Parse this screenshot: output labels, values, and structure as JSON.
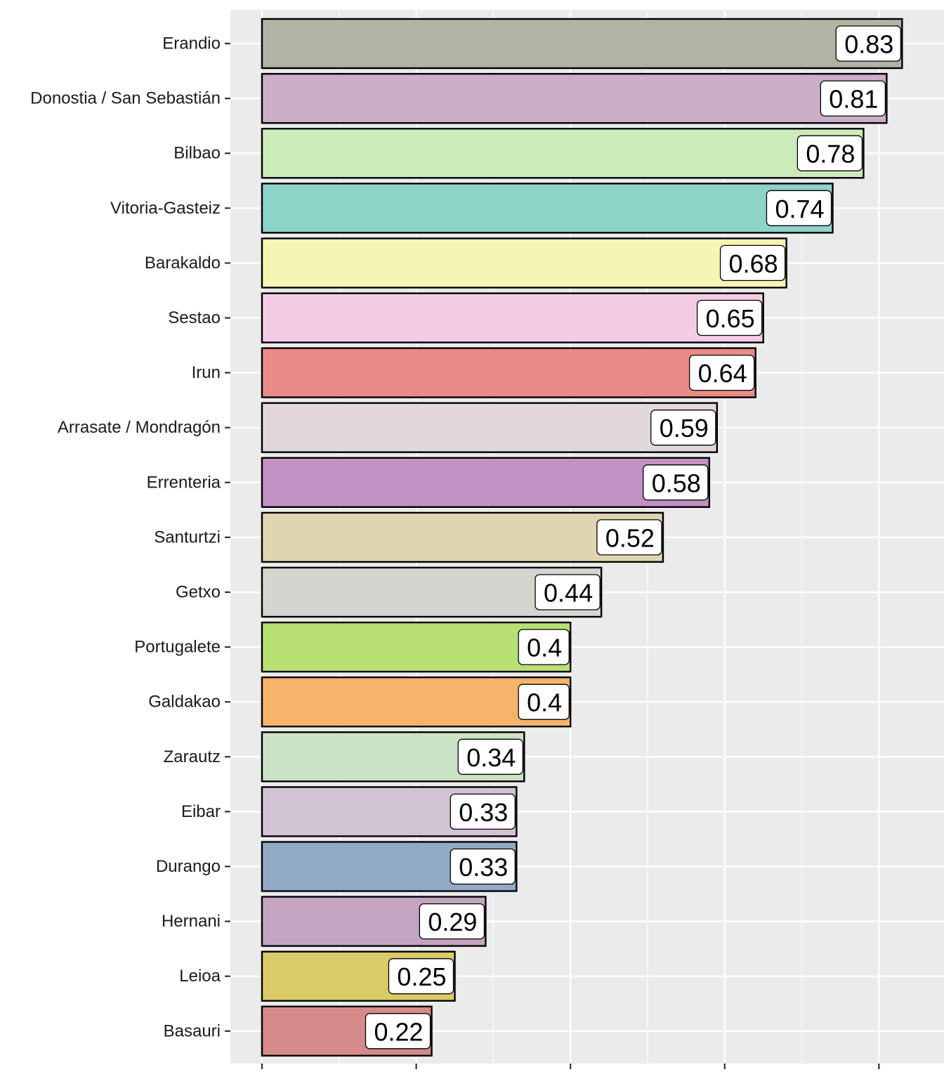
{
  "chart_data": {
    "type": "bar",
    "orientation": "horizontal",
    "title": "",
    "xlabel": "",
    "ylabel": "",
    "xlim": [
      0,
      0.87
    ],
    "x_tick_values": [
      0,
      0.2,
      0.4,
      0.6,
      0.8
    ],
    "x_tick_labels_shown": false,
    "grid": true,
    "legend": "none",
    "panel_color": "#EBEBEB",
    "bars": [
      {
        "category": "Erandio",
        "value": 0.83,
        "label": "0.83",
        "color": "#B3B3A5"
      },
      {
        "category": "Donostia / San Sebastián",
        "value": 0.81,
        "label": "0.81",
        "color": "#CBAFC8"
      },
      {
        "category": "Bilbao",
        "value": 0.78,
        "label": "0.78",
        "color": "#CCEBBA"
      },
      {
        "category": "Vitoria-Gasteiz",
        "value": 0.74,
        "label": "0.74",
        "color": "#8DD3C7"
      },
      {
        "category": "Barakaldo",
        "value": 0.68,
        "label": "0.68",
        "color": "#F6F6B4"
      },
      {
        "category": "Sestao",
        "value": 0.65,
        "label": "0.65",
        "color": "#F4CDE4"
      },
      {
        "category": "Irun",
        "value": 0.64,
        "label": "0.64",
        "color": "#E98C88"
      },
      {
        "category": "Arrasate / Mondragón",
        "value": 0.59,
        "label": "0.59",
        "color": "#E3D7DE"
      },
      {
        "category": "Errenteria",
        "value": 0.58,
        "label": "0.58",
        "color": "#C390C3"
      },
      {
        "category": "Santurtzi",
        "value": 0.52,
        "label": "0.52",
        "color": "#DFD5B3"
      },
      {
        "category": "Getxo",
        "value": 0.44,
        "label": "0.44",
        "color": "#D5D5CF"
      },
      {
        "category": "Portugalete",
        "value": 0.4,
        "label": "0.4",
        "color": "#B8DF71"
      },
      {
        "category": "Galdakao",
        "value": 0.4,
        "label": "0.4",
        "color": "#F6B36A"
      },
      {
        "category": "Zarautz",
        "value": 0.34,
        "label": "0.34",
        "color": "#CBE2C6"
      },
      {
        "category": "Eibar",
        "value": 0.33,
        "label": "0.33",
        "color": "#D2C3D4"
      },
      {
        "category": "Durango",
        "value": 0.33,
        "label": "0.33",
        "color": "#93AAC5"
      },
      {
        "category": "Hernani",
        "value": 0.29,
        "label": "0.29",
        "color": "#C3A5C1"
      },
      {
        "category": "Leioa",
        "value": 0.25,
        "label": "0.25",
        "color": "#D9CB67"
      },
      {
        "category": "Basauri",
        "value": 0.22,
        "label": "0.22",
        "color": "#D68A89"
      }
    ]
  }
}
